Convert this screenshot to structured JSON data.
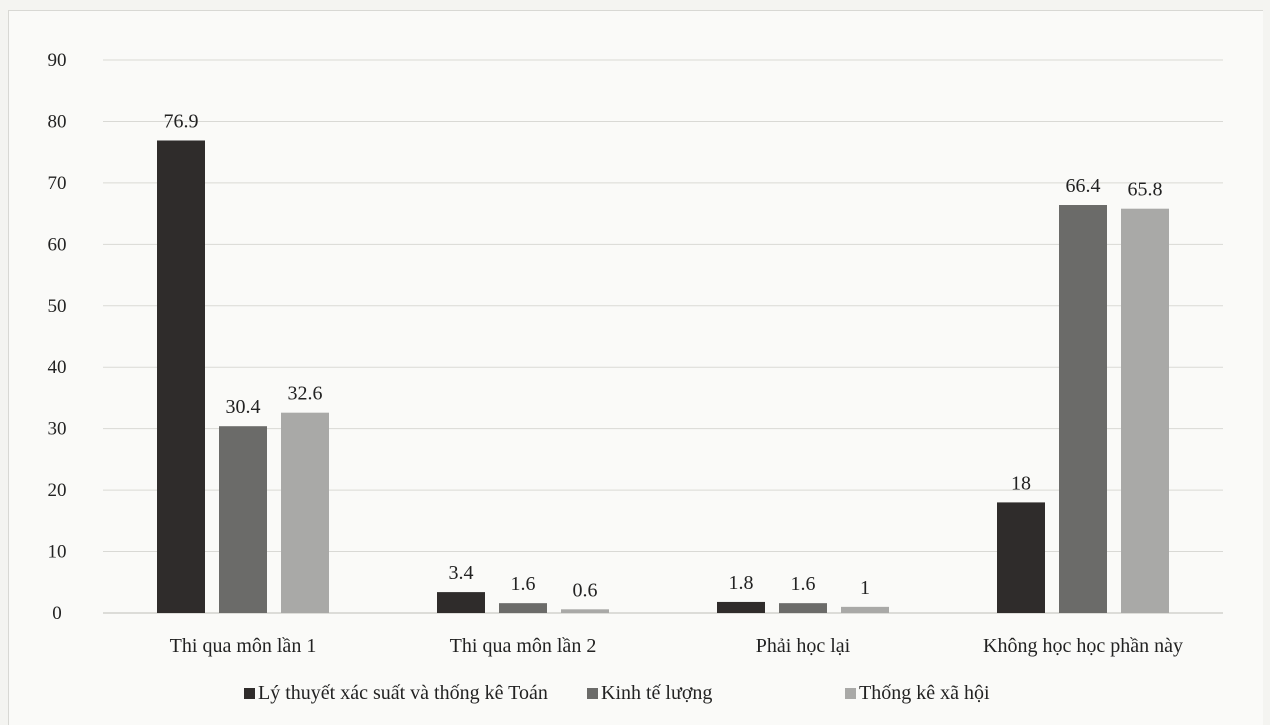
{
  "chart_data": {
    "type": "bar",
    "categories": [
      "Thi qua môn lần 1",
      "Thi qua môn lần 2",
      "Phải học lại",
      "Không học học phần này"
    ],
    "series": [
      {
        "name": "Lý thuyết xác suất và thống kê Toán",
        "values": [
          76.9,
          3.4,
          1.8,
          18
        ],
        "labels": [
          "76.9",
          "3.4",
          "1.8",
          "18"
        ],
        "color": "#2f2c2b"
      },
      {
        "name": "Kinh tế lượng",
        "values": [
          30.4,
          1.6,
          1.6,
          66.4
        ],
        "labels": [
          "30.4",
          "1.6",
          "1.6",
          "66.4"
        ],
        "color": "#6b6b69"
      },
      {
        "name": "Thống kê xã hội",
        "values": [
          32.6,
          0.6,
          1,
          65.8
        ],
        "labels": [
          "32.6",
          "0.6",
          "1",
          "65.8"
        ],
        "color": "#a9a9a7"
      }
    ],
    "yticks": [
      0,
      10,
      20,
      30,
      40,
      50,
      60,
      70,
      80,
      90
    ],
    "ylim": [
      0,
      90
    ],
    "grid": true,
    "legend_position": "bottom"
  }
}
